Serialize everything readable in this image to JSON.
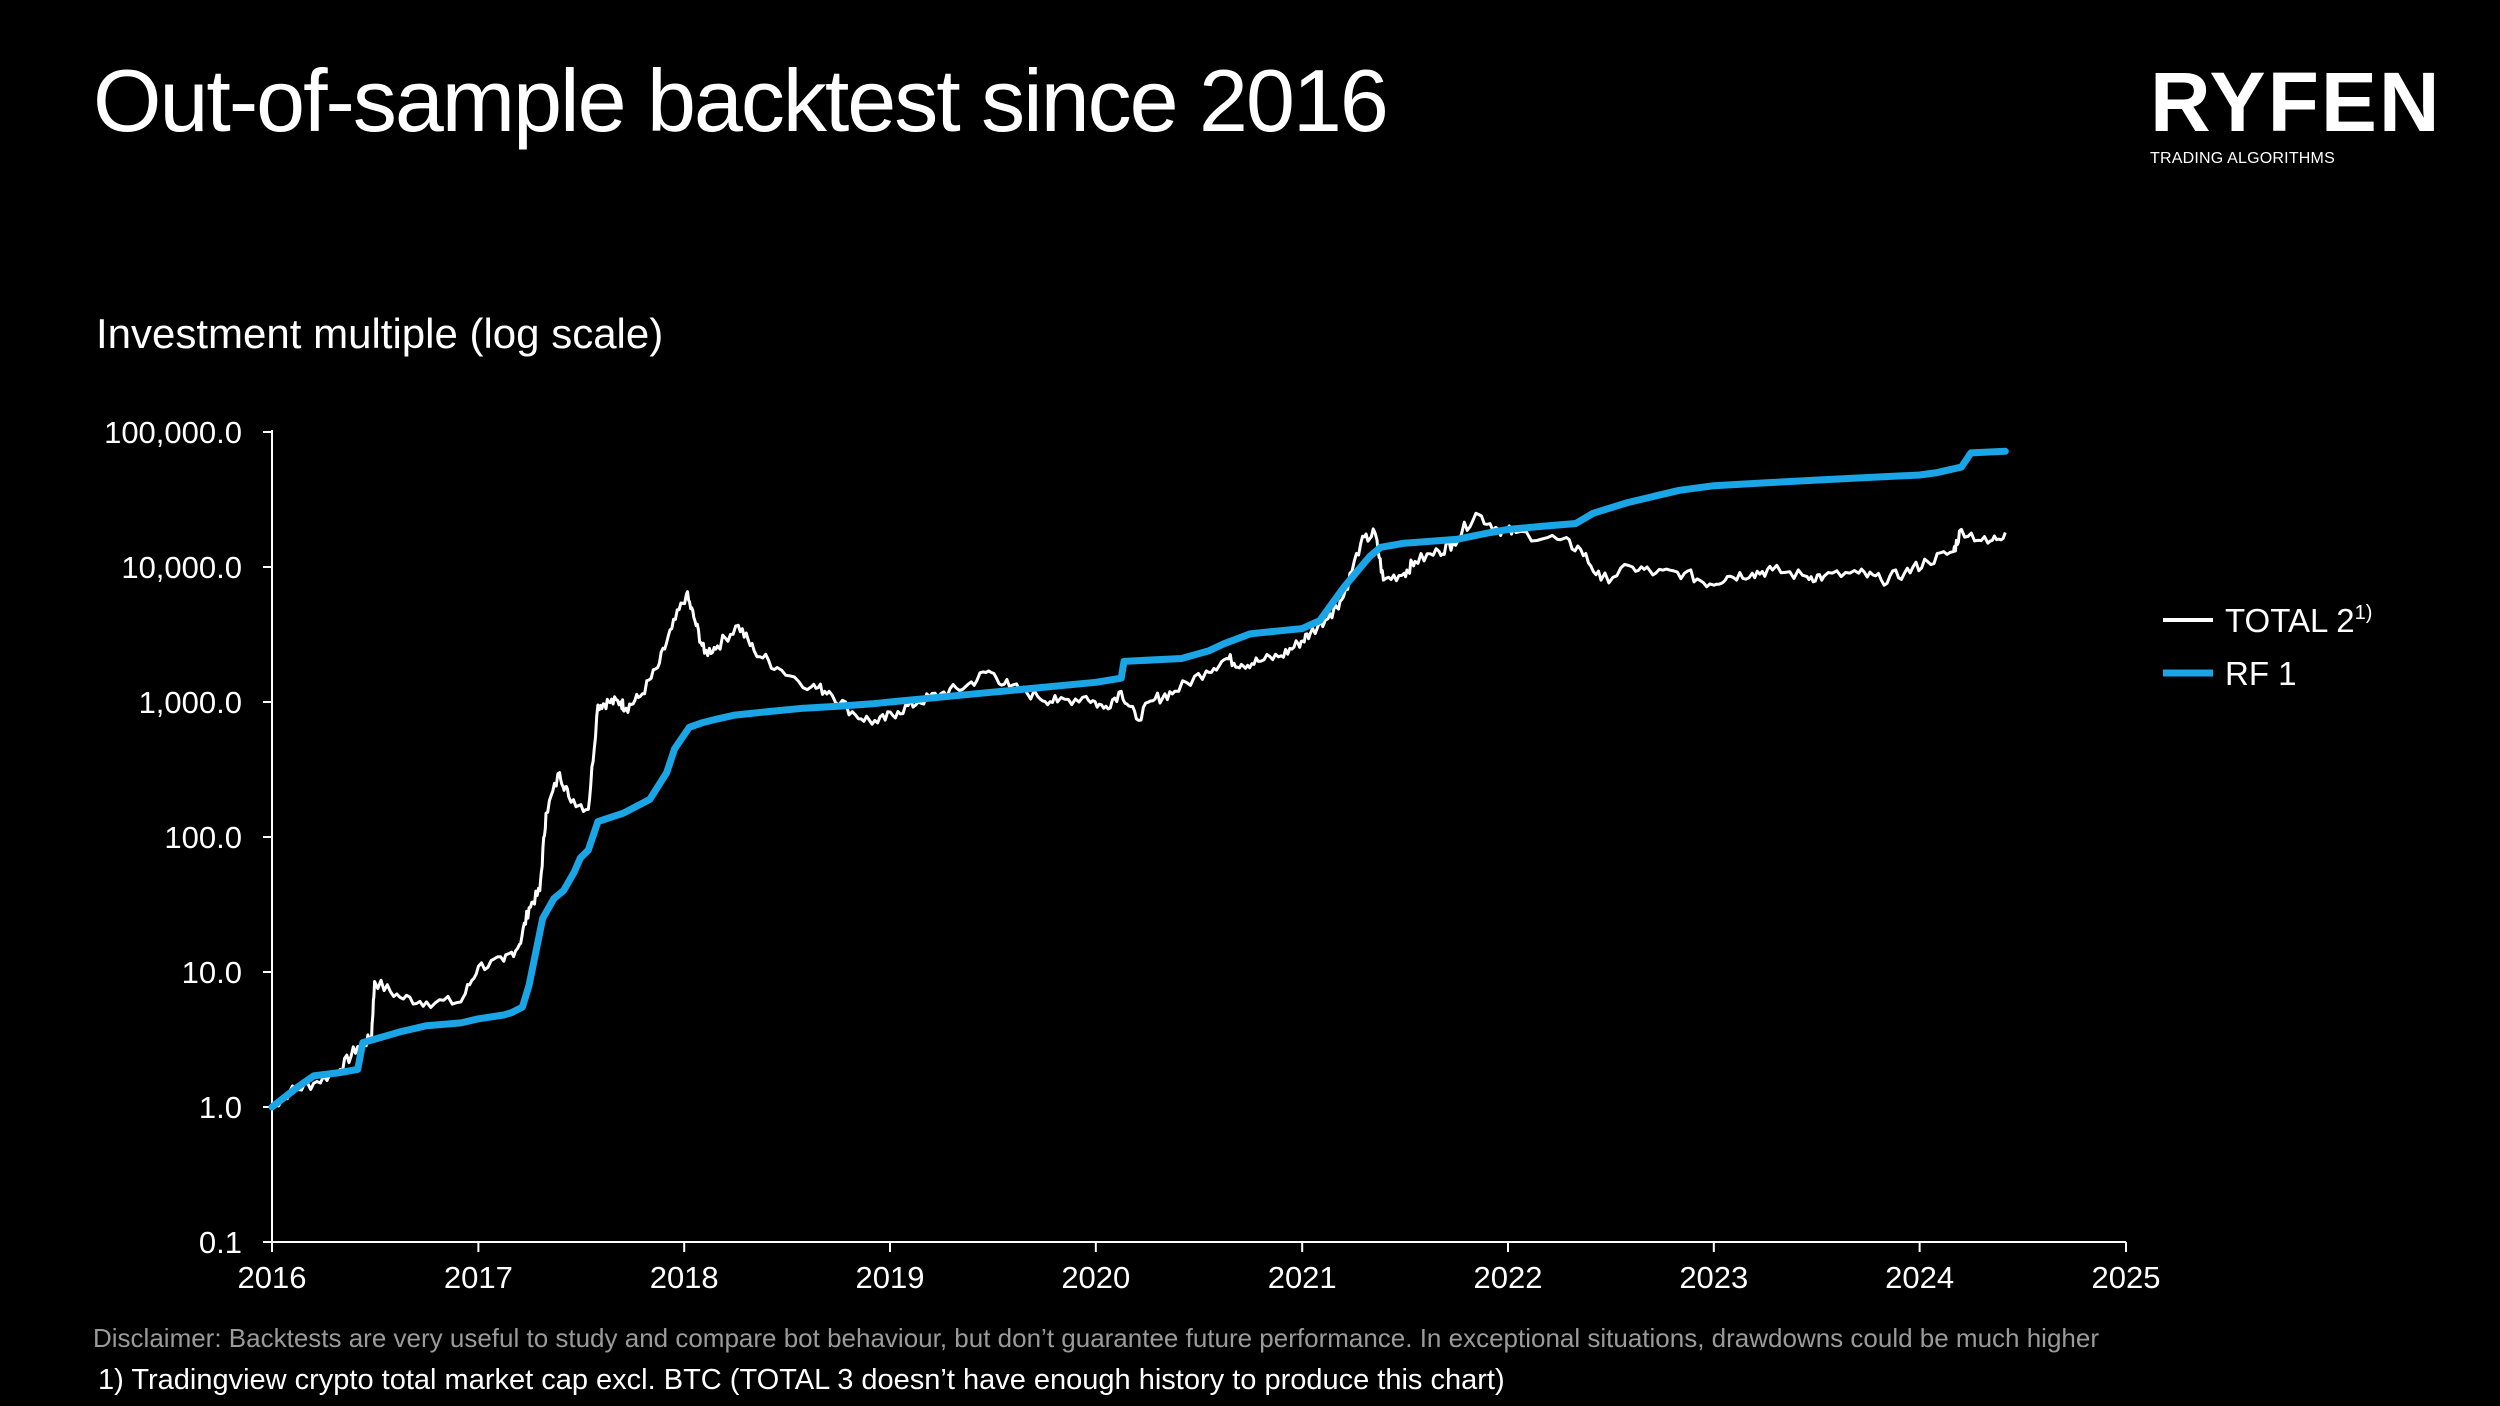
{
  "slide": {
    "title": "Out-of-sample backtest since 2016",
    "brand": {
      "name": "RYFEN",
      "tagline": "TRADING ALGORITHMS"
    },
    "subtitle": "Investment multiple (log scale)",
    "disclaimer": "Disclaimer: Backtests are very useful to study and compare bot behaviour, but don’t guarantee future performance. In exceptional situations, drawdowns could be much higher",
    "footnote": "1) Tradingview crypto total market cap excl. BTC (TOTAL 3 doesn’t have enough history to produce this chart)"
  },
  "chart_data": {
    "type": "line",
    "title": "Investment multiple (log scale)",
    "xlabel": "",
    "ylabel": "",
    "y_scale": "log",
    "ylim": [
      0.1,
      100000
    ],
    "xlim": [
      "2016-01-01",
      "2025-01-01"
    ],
    "y_ticks": [
      0.1,
      1,
      10,
      100,
      1000,
      10000,
      100000
    ],
    "y_tick_labels": [
      "0.1",
      "1.0",
      "10.0",
      "100.0",
      "1,000.0",
      "10,000.0",
      "100,000.0"
    ],
    "x_ticks": [
      "2016-01-01",
      "2017-01-01",
      "2018-01-01",
      "2019-01-01",
      "2020-01-01",
      "2021-01-01",
      "2022-01-01",
      "2023-01-01",
      "2024-01-01",
      "2025-01-01"
    ],
    "x_tick_labels": [
      "2016",
      "2017",
      "2018",
      "2019",
      "2020",
      "2021",
      "2022",
      "2023",
      "2024",
      "2025"
    ],
    "grid": false,
    "legend_position": "right",
    "series": [
      {
        "name": "TOTAL 2",
        "name_superscript": "1)",
        "color": "#ffffff",
        "x": [
          "2016-01-01",
          "2016-02-01",
          "2016-03-15",
          "2016-05-01",
          "2016-06-01",
          "2016-06-25",
          "2016-07-01",
          "2016-08-15",
          "2016-10-01",
          "2016-12-01",
          "2017-01-01",
          "2017-02-15",
          "2017-03-15",
          "2017-04-01",
          "2017-04-20",
          "2017-05-01",
          "2017-05-25",
          "2017-06-10",
          "2017-07-15",
          "2017-08-01",
          "2017-08-20",
          "2017-09-10",
          "2017-09-20",
          "2017-10-15",
          "2017-11-15",
          "2017-12-10",
          "2018-01-05",
          "2018-01-20",
          "2018-02-06",
          "2018-03-01",
          "2018-04-07",
          "2018-05-05",
          "2018-06-15",
          "2018-08-15",
          "2018-09-15",
          "2018-11-01",
          "2018-12-10",
          "2019-01-15",
          "2019-02-20",
          "2019-04-01",
          "2019-05-15",
          "2019-06-25",
          "2019-08-01",
          "2019-09-20",
          "2019-10-25",
          "2019-12-15",
          "2020-01-15",
          "2020-02-15",
          "2020-03-13",
          "2020-04-15",
          "2020-05-20",
          "2020-07-15",
          "2020-08-20",
          "2020-09-15",
          "2020-10-15",
          "2020-11-25",
          "2020-12-25",
          "2021-01-15",
          "2021-02-20",
          "2021-03-15",
          "2021-04-15",
          "2021-05-10",
          "2021-05-25",
          "2021-07-01",
          "2021-07-20",
          "2021-09-01",
          "2021-09-25",
          "2021-11-05",
          "2021-12-15",
          "2022-01-15",
          "2022-03-30",
          "2022-05-10",
          "2022-06-15",
          "2022-08-10",
          "2022-09-20",
          "2022-11-10",
          "2022-12-25",
          "2023-01-25",
          "2023-03-10",
          "2023-04-15",
          "2023-06-15",
          "2023-07-15",
          "2023-09-15",
          "2023-10-25",
          "2023-12-05",
          "2024-01-15",
          "2024-03-01",
          "2024-03-15",
          "2024-05-01",
          "2024-06-01"
        ],
        "values": [
          1.0,
          1.3,
          1.5,
          1.9,
          2.8,
          3.2,
          8.5,
          6.5,
          6.0,
          6.0,
          11,
          12,
          16,
          30,
          40,
          150,
          300,
          200,
          160,
          950,
          1000,
          1000,
          900,
          1100,
          1800,
          3500,
          6300,
          4000,
          2300,
          2600,
          3700,
          2400,
          1800,
          1300,
          1200,
          800,
          700,
          850,
          1000,
          1150,
          1300,
          1700,
          1300,
          1100,
          1000,
          1100,
          900,
          1200,
          750,
          1050,
          1200,
          1700,
          2100,
          1900,
          2000,
          2200,
          2700,
          3200,
          4500,
          6000,
          15000,
          18000,
          8000,
          9000,
          11000,
          13000,
          15000,
          25000,
          19000,
          18000,
          16000,
          13500,
          8000,
          10000,
          9000,
          9000,
          7500,
          8500,
          9000,
          9500,
          8500,
          8500,
          9000,
          8000,
          9000,
          11000,
          13000,
          19000,
          15000,
          18000
        ]
      },
      {
        "name": "RF 1",
        "color": "#1aa6e6",
        "x": [
          "2016-01-01",
          "2016-02-15",
          "2016-03-15",
          "2016-05-01",
          "2016-06-01",
          "2016-06-10",
          "2016-08-15",
          "2016-10-01",
          "2016-12-01",
          "2017-01-01",
          "2017-02-15",
          "2017-03-01",
          "2017-03-20",
          "2017-04-01",
          "2017-04-25",
          "2017-05-15",
          "2017-06-01",
          "2017-06-20",
          "2017-07-01",
          "2017-07-15",
          "2017-08-01",
          "2017-09-15",
          "2017-11-01",
          "2017-12-01",
          "2017-12-15",
          "2018-01-10",
          "2018-02-01",
          "2018-03-01",
          "2018-04-01",
          "2018-06-01",
          "2018-08-01",
          "2018-10-01",
          "2018-12-01",
          "2019-01-01",
          "2019-06-01",
          "2019-09-01",
          "2020-01-01",
          "2020-02-15",
          "2020-02-20",
          "2020-06-01",
          "2020-07-20",
          "2020-08-15",
          "2020-10-01",
          "2020-12-01",
          "2021-01-01",
          "2021-02-01",
          "2021-03-15",
          "2021-04-15",
          "2021-05-01",
          "2021-05-20",
          "2021-07-01",
          "2021-10-01",
          "2021-12-01",
          "2022-01-01",
          "2022-03-01",
          "2022-05-01",
          "2022-06-01",
          "2022-08-01",
          "2022-11-01",
          "2023-01-01",
          "2023-04-01",
          "2023-07-01",
          "2023-10-01",
          "2024-01-01",
          "2024-02-01",
          "2024-03-15",
          "2024-04-01",
          "2024-06-01"
        ],
        "values": [
          1.0,
          1.4,
          1.7,
          1.8,
          1.9,
          3.0,
          3.6,
          4.0,
          4.2,
          4.5,
          4.8,
          5.0,
          5.5,
          8.0,
          25,
          35,
          40,
          55,
          70,
          80,
          130,
          150,
          190,
          300,
          450,
          650,
          700,
          750,
          800,
          850,
          900,
          930,
          970,
          1000,
          1150,
          1250,
          1400,
          1500,
          2000,
          2100,
          2400,
          2700,
          3200,
          3400,
          3500,
          4000,
          7000,
          10000,
          12000,
          14000,
          15000,
          16000,
          18000,
          19000,
          20000,
          21000,
          25000,
          30000,
          37000,
          40000,
          42000,
          44000,
          46000,
          48000,
          50000,
          55000,
          70000,
          72000
        ]
      }
    ]
  }
}
